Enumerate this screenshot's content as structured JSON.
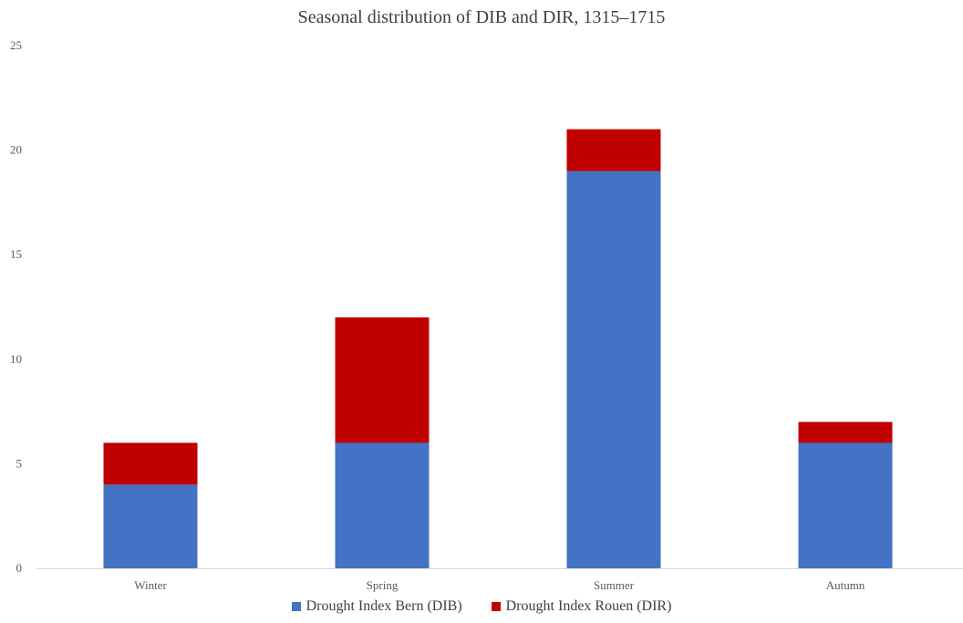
{
  "chart_data": {
    "type": "bar",
    "stacked": true,
    "title": "Seasonal distribution of DIB and DIR, 1315–1715",
    "xlabel": "",
    "ylabel": "",
    "categories": [
      "Winter",
      "Spring",
      "Summer",
      "Autumn"
    ],
    "series": [
      {
        "name": "Drought Index Bern (DIB)",
        "values": [
          4,
          6,
          19,
          6
        ],
        "color": "#4472C4"
      },
      {
        "name": "Drought Index Rouen (DIR)",
        "values": [
          2,
          6,
          2,
          1
        ],
        "color": "#C00000"
      }
    ],
    "ylim": [
      0,
      25
    ],
    "yticks": [
      0,
      5,
      10,
      15,
      20,
      25
    ],
    "grid": false,
    "legend_position": "bottom"
  }
}
